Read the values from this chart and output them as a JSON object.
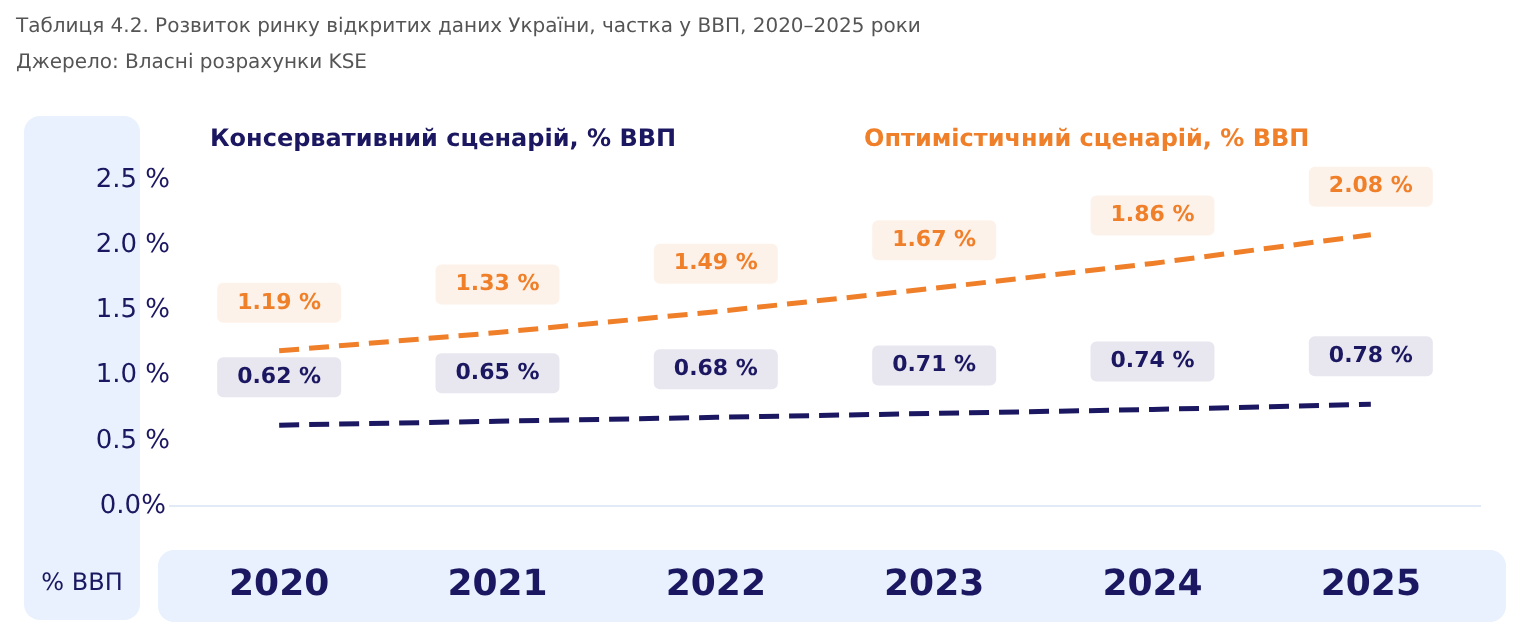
{
  "chart_data": {
    "type": "line",
    "title": "Таблиця 4.2. Розвиток ринку відкритих даних України, частка у ВВП, 2020–2025 роки",
    "annotations": [
      "Джерело: Власні розрахунки KSE"
    ],
    "ylabel": "% ВВП",
    "categories": [
      "2020",
      "2021",
      "2022",
      "2023",
      "2024",
      "2025"
    ],
    "series": [
      {
        "name": "Консервативний сценарій, % ВВП",
        "color": "#1b1760",
        "values": [
          0.62,
          0.65,
          0.68,
          0.71,
          0.74,
          0.78
        ],
        "value_labels": [
          "0.62 %",
          "0.65 %",
          "0.68 %",
          "0.71 %",
          "0.74 %",
          "0.78 %"
        ]
      },
      {
        "name": "Оптимістичний сценарій, % ВВП",
        "color": "#f07f2a",
        "values": [
          1.19,
          1.33,
          1.49,
          1.67,
          1.86,
          2.08
        ],
        "value_labels": [
          "1.19 %",
          "1.33 %",
          "1.49 %",
          "1.67 %",
          "1.86 %",
          "2.08 %"
        ]
      }
    ],
    "ylim": [
      0,
      2.5
    ],
    "yticks": [
      {
        "value": 0,
        "label": "0.0%"
      },
      {
        "value": 0.5,
        "label": "0.5 %"
      },
      {
        "value": 1,
        "label": "1.0 %"
      },
      {
        "value": 1.5,
        "label": "1.5 %"
      },
      {
        "value": 2,
        "label": "2.0 %"
      },
      {
        "value": 2.5,
        "label": "2.5 %"
      }
    ],
    "grid": false,
    "legend": "top",
    "marker": "none",
    "line_style": "dashed"
  }
}
